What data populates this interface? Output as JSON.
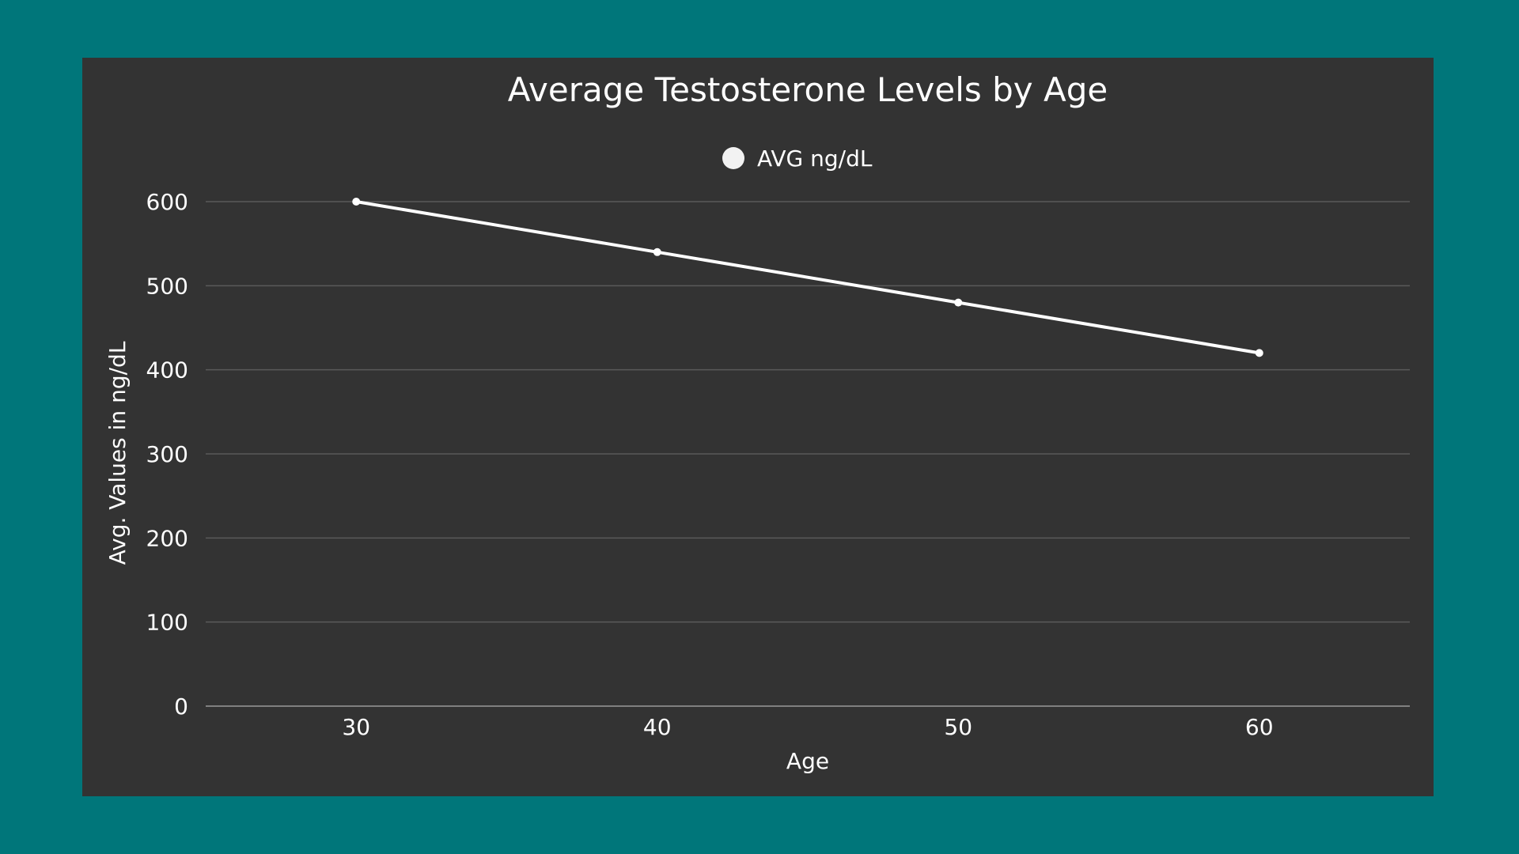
{
  "colors": {
    "background": "#00767a",
    "panel": "#333333",
    "gridline": "#5a5a5a",
    "axis": "#9a9a9a",
    "series": "#ffffff",
    "text": "#ffffff"
  },
  "chart_data": {
    "type": "line",
    "title": "Average Testosterone Levels by Age",
    "xlabel": "Age",
    "ylabel": "Avg. Values in ng/dL",
    "x": [
      30,
      40,
      50,
      60
    ],
    "xlim": [
      25,
      65
    ],
    "ylim": [
      0,
      600
    ],
    "yticks": [
      0,
      100,
      200,
      300,
      400,
      500,
      600
    ],
    "xticks": [
      30,
      40,
      50,
      60
    ],
    "grid": true,
    "legend_position": "top-center",
    "series": [
      {
        "name": "AVG ng/dL",
        "values": [
          600,
          540,
          480,
          420
        ],
        "color": "#ffffff"
      }
    ]
  }
}
